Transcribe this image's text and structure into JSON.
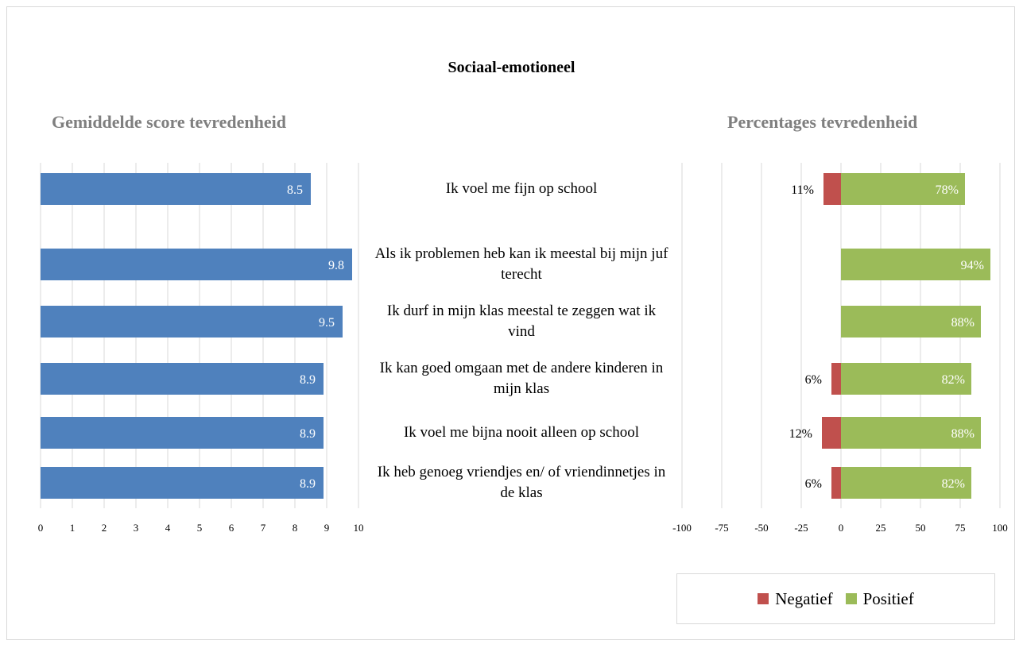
{
  "title": "Sociaal-emotioneel",
  "colors": {
    "score": "#4f81bd",
    "negative": "#c0504d",
    "positive": "#9bbb59",
    "grid": "#d9d9d9",
    "panel_title": "#7f7f7f"
  },
  "legend": {
    "negative": "Negatief",
    "positive": "Positief",
    "placement": "bottom-right"
  },
  "categories": [
    "Ik voel me fijn op school",
    "Als ik problemen heb kan ik meestal bij mijn juf terecht",
    "Ik durf in mijn klas meestal te zeggen wat ik vind",
    "Ik kan goed omgaan met de andere kinderen in mijn klas",
    "Ik voel me bijna nooit alleen op school",
    "Ik heb genoeg vriendjes en/ of vriendinnetjes in de klas"
  ],
  "chart_data": [
    {
      "type": "bar",
      "orientation": "horizontal",
      "title": "Gemiddelde score tevredenheid",
      "categories": [
        "Ik voel me fijn op school",
        "Als ik problemen heb kan ik meestal bij mijn juf terecht",
        "Ik durf in mijn klas meestal te zeggen wat ik vind",
        "Ik kan goed omgaan met de andere kinderen in mijn klas",
        "Ik voel me bijna nooit alleen op school",
        "Ik heb genoeg vriendjes en/ of vriendinnetjes in de klas"
      ],
      "values": [
        8.5,
        9.8,
        9.5,
        8.9,
        8.9,
        8.9
      ],
      "data_labels": [
        "8.5",
        "9.8",
        "9.5",
        "8.9",
        "8.9",
        "8.9"
      ],
      "xlim": [
        0,
        10
      ],
      "xticks": [
        "0",
        "1",
        "2",
        "3",
        "4",
        "5",
        "6",
        "7",
        "8",
        "9",
        "10"
      ],
      "grid": true
    },
    {
      "type": "bar",
      "orientation": "horizontal",
      "stacked": "diverging",
      "title": "Percentages tevredenheid",
      "categories": [
        "Ik voel me fijn op school",
        "Als ik problemen heb kan ik meestal bij mijn juf terecht",
        "Ik durf in mijn klas meestal te zeggen wat ik vind",
        "Ik kan goed omgaan met de andere kinderen in mijn klas",
        "Ik voel me bijna nooit alleen op school",
        "Ik heb genoeg vriendjes en/ of vriendinnetjes in de klas"
      ],
      "series": [
        {
          "name": "Negatief",
          "values": [
            -11,
            0,
            0,
            -6,
            -12,
            -6
          ],
          "data_labels": [
            "11%",
            "",
            "",
            "6%",
            "12%",
            "6%"
          ]
        },
        {
          "name": "Positief",
          "values": [
            78,
            94,
            88,
            82,
            88,
            82
          ],
          "data_labels": [
            "78%",
            "94%",
            "88%",
            "82%",
            "88%",
            "82%"
          ]
        }
      ],
      "xlim": [
        -100,
        100
      ],
      "xticks": [
        "-100",
        "-75",
        "-50",
        "-25",
        "0",
        "25",
        "50",
        "75",
        "100"
      ],
      "grid": true
    }
  ]
}
